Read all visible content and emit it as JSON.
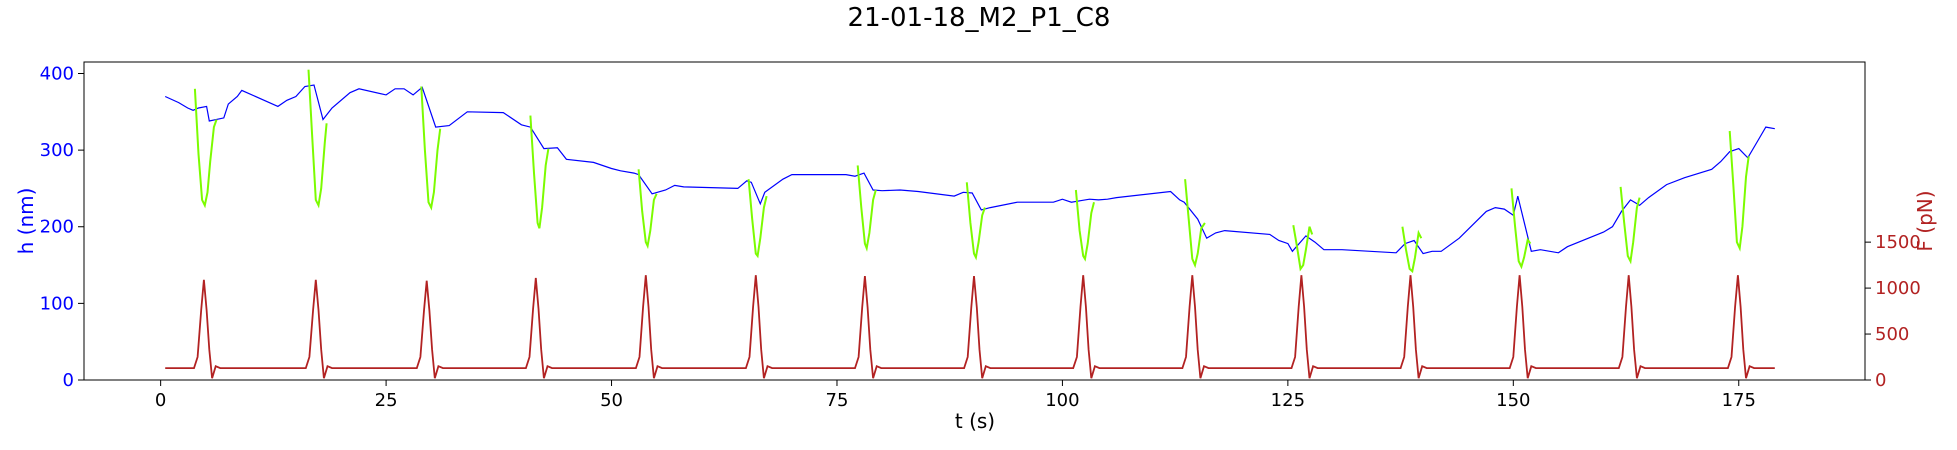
{
  "chart_data": {
    "type": "line",
    "title": "21-01-18_M2_P1_C8",
    "xlabel": "t (s)",
    "ylabel_left": "h (nm)",
    "ylabel_right": "F (pN)",
    "xlim": [
      -8.5,
      189
    ],
    "ylim_left": [
      0,
      415
    ],
    "ylim_right": [
      0,
      3460
    ],
    "xticks": [
      "0",
      "25",
      "50",
      "75",
      "100",
      "125",
      "150",
      "175"
    ],
    "xtick_values": [
      0,
      25,
      50,
      75,
      100,
      125,
      150,
      175
    ],
    "yticks_left": [
      "0",
      "100",
      "200",
      "300",
      "400"
    ],
    "ytick_values_left": [
      0,
      100,
      200,
      300,
      400
    ],
    "yticks_right": [
      "0",
      "500",
      "1000",
      "1500"
    ],
    "ytick_values_right": [
      0,
      500,
      1000,
      1500
    ],
    "colors": {
      "height": "#0000ff",
      "compression": "#7cfc00",
      "force": "#b22222",
      "left_axis": "#0000ff",
      "right_axis": "#b22222"
    },
    "series": [
      {
        "axis": "left",
        "color": "#0000ff",
        "points": [
          [
            0.5,
            370
          ],
          [
            2,
            362
          ],
          [
            3,
            355
          ],
          [
            3.6,
            352
          ],
          [
            4.2,
            355
          ],
          [
            5.1,
            357
          ],
          [
            5.4,
            338
          ],
          [
            7,
            342
          ],
          [
            7.5,
            360
          ],
          [
            8.5,
            370
          ],
          [
            9,
            378
          ],
          [
            13,
            357
          ],
          [
            14,
            365
          ],
          [
            15,
            370
          ],
          [
            16,
            383
          ],
          [
            17,
            385
          ],
          [
            18,
            340
          ],
          [
            19,
            355
          ],
          [
            21,
            375
          ],
          [
            22,
            380
          ],
          [
            25,
            372
          ],
          [
            26,
            380
          ],
          [
            27,
            380
          ],
          [
            28,
            372
          ],
          [
            29,
            382
          ],
          [
            30.5,
            330
          ],
          [
            32,
            332
          ],
          [
            34,
            350
          ],
          [
            38,
            349
          ],
          [
            40,
            333
          ],
          [
            41,
            330
          ],
          [
            42.5,
            302
          ],
          [
            44,
            303
          ],
          [
            45,
            288
          ],
          [
            48,
            284
          ],
          [
            50,
            276
          ],
          [
            51,
            273
          ],
          [
            52.5,
            270
          ],
          [
            53,
            268
          ],
          [
            54.5,
            243
          ],
          [
            56,
            248
          ],
          [
            57,
            254
          ],
          [
            58,
            252
          ],
          [
            64,
            250
          ],
          [
            65,
            260
          ],
          [
            65.5,
            258
          ],
          [
            66.5,
            230
          ],
          [
            67,
            245
          ],
          [
            69,
            262
          ],
          [
            70,
            268
          ],
          [
            76,
            268
          ],
          [
            77,
            266
          ],
          [
            78,
            270
          ],
          [
            79,
            248
          ],
          [
            80,
            247
          ],
          [
            82,
            248
          ],
          [
            84,
            246
          ],
          [
            88,
            240
          ],
          [
            89,
            245
          ],
          [
            90,
            244
          ],
          [
            91,
            222
          ],
          [
            92,
            225
          ],
          [
            95,
            232
          ],
          [
            99,
            232
          ],
          [
            100,
            236
          ],
          [
            101,
            232
          ],
          [
            102,
            234
          ],
          [
            103,
            236
          ],
          [
            104,
            235
          ],
          [
            105,
            236
          ],
          [
            106,
            238
          ],
          [
            112,
            246
          ],
          [
            113,
            235
          ],
          [
            113.5,
            232
          ],
          [
            115,
            210
          ],
          [
            116,
            185
          ],
          [
            117,
            192
          ],
          [
            118,
            195
          ],
          [
            123,
            190
          ],
          [
            124,
            182
          ],
          [
            125,
            178
          ],
          [
            125.5,
            168
          ],
          [
            127,
            188
          ],
          [
            128,
            180
          ],
          [
            129,
            170
          ],
          [
            131,
            170
          ],
          [
            137,
            166
          ],
          [
            138,
            178
          ],
          [
            139,
            182
          ],
          [
            140,
            165
          ],
          [
            141,
            168
          ],
          [
            142,
            168
          ],
          [
            144,
            185
          ],
          [
            147,
            220
          ],
          [
            148,
            225
          ],
          [
            149,
            223
          ],
          [
            150,
            215
          ],
          [
            150.5,
            240
          ],
          [
            152,
            168
          ],
          [
            153,
            170
          ],
          [
            155,
            166
          ],
          [
            156,
            174
          ],
          [
            160,
            193
          ],
          [
            161,
            200
          ],
          [
            162,
            220
          ],
          [
            163,
            235
          ],
          [
            164,
            228
          ],
          [
            165,
            238
          ],
          [
            167,
            255
          ],
          [
            169,
            264
          ],
          [
            172,
            275
          ],
          [
            173,
            285
          ],
          [
            174,
            298
          ],
          [
            175,
            302
          ],
          [
            176,
            290
          ],
          [
            177,
            310
          ],
          [
            178,
            330
          ],
          [
            179,
            328
          ]
        ]
      },
      {
        "axis": "left",
        "color": "#7cfc00",
        "segments": [
          [
            [
              3.8,
              380
            ],
            [
              4.2,
              295
            ],
            [
              4.6,
              235
            ],
            [
              4.9,
              228
            ],
            [
              5.2,
              245
            ],
            [
              5.5,
              285
            ],
            [
              5.9,
              330
            ],
            [
              6.2,
              340
            ]
          ],
          [
            [
              16.4,
              405
            ],
            [
              16.8,
              320
            ],
            [
              17.2,
              235
            ],
            [
              17.5,
              228
            ],
            [
              17.8,
              250
            ],
            [
              18.2,
              310
            ],
            [
              18.4,
              335
            ]
          ],
          [
            [
              28.9,
              383
            ],
            [
              29.3,
              300
            ],
            [
              29.7,
              232
            ],
            [
              30.0,
              225
            ],
            [
              30.3,
              245
            ],
            [
              30.7,
              300
            ],
            [
              31.0,
              328
            ]
          ],
          [
            [
              41.0,
              345
            ],
            [
              41.4,
              270
            ],
            [
              41.8,
              205
            ],
            [
              42.0,
              198
            ],
            [
              42.3,
              225
            ],
            [
              42.7,
              280
            ],
            [
              43.0,
              302
            ]
          ],
          [
            [
              53.0,
              275
            ],
            [
              53.4,
              220
            ],
            [
              53.8,
              180
            ],
            [
              54.0,
              175
            ],
            [
              54.3,
              195
            ],
            [
              54.7,
              235
            ],
            [
              55.0,
              243
            ]
          ],
          [
            [
              65.2,
              262
            ],
            [
              65.6,
              210
            ],
            [
              66.0,
              165
            ],
            [
              66.2,
              162
            ],
            [
              66.5,
              185
            ],
            [
              66.9,
              225
            ],
            [
              67.2,
              240
            ]
          ],
          [
            [
              77.3,
              280
            ],
            [
              77.7,
              225
            ],
            [
              78.1,
              178
            ],
            [
              78.3,
              172
            ],
            [
              78.6,
              192
            ],
            [
              79.0,
              235
            ],
            [
              79.3,
              248
            ]
          ],
          [
            [
              89.4,
              258
            ],
            [
              89.8,
              205
            ],
            [
              90.2,
              165
            ],
            [
              90.4,
              160
            ],
            [
              90.7,
              180
            ],
            [
              91.1,
              215
            ],
            [
              91.4,
              225
            ]
          ],
          [
            [
              101.5,
              248
            ],
            [
              101.9,
              195
            ],
            [
              102.3,
              162
            ],
            [
              102.5,
              158
            ],
            [
              102.8,
              178
            ],
            [
              103.2,
              218
            ],
            [
              103.5,
              232
            ]
          ],
          [
            [
              113.6,
              262
            ],
            [
              114.0,
              210
            ],
            [
              114.4,
              158
            ],
            [
              114.7,
              150
            ],
            [
              115.0,
              165
            ],
            [
              115.4,
              198
            ],
            [
              115.8,
              205
            ]
          ],
          [
            [
              125.6,
              202
            ],
            [
              126.0,
              175
            ],
            [
              126.4,
              145
            ],
            [
              126.7,
              150
            ],
            [
              127.0,
              170
            ],
            [
              127.4,
              200
            ],
            [
              127.7,
              190
            ]
          ],
          [
            [
              137.7,
              200
            ],
            [
              138.1,
              170
            ],
            [
              138.5,
              145
            ],
            [
              138.8,
              142
            ],
            [
              139.1,
              160
            ],
            [
              139.5,
              192
            ],
            [
              139.8,
              185
            ]
          ],
          [
            [
              149.8,
              250
            ],
            [
              150.2,
              200
            ],
            [
              150.6,
              155
            ],
            [
              150.9,
              148
            ],
            [
              151.2,
              160
            ],
            [
              151.6,
              183
            ],
            [
              151.9,
              178
            ]
          ],
          [
            [
              161.9,
              252
            ],
            [
              162.3,
              205
            ],
            [
              162.7,
              162
            ],
            [
              163.0,
              155
            ],
            [
              163.3,
              180
            ],
            [
              163.7,
              225
            ],
            [
              164.0,
              238
            ]
          ],
          [
            [
              174.0,
              325
            ],
            [
              174.4,
              255
            ],
            [
              174.8,
              180
            ],
            [
              175.1,
              172
            ],
            [
              175.4,
              200
            ],
            [
              175.8,
              265
            ],
            [
              176.1,
              292
            ]
          ]
        ]
      },
      {
        "axis": "right",
        "color": "#b22222",
        "baseline": 130,
        "peak_times": [
          4.8,
          17.2,
          29.5,
          41.6,
          53.8,
          66.0,
          78.1,
          90.2,
          102.3,
          114.4,
          126.5,
          138.6,
          150.7,
          162.8,
          174.9
        ],
        "peak_values": [
          1090,
          1090,
          1080,
          1110,
          1140,
          1140,
          1130,
          1130,
          1140,
          1140,
          1140,
          1140,
          1140,
          1140,
          1140
        ],
        "t_start": 0.5,
        "t_end": 179
      }
    ]
  }
}
